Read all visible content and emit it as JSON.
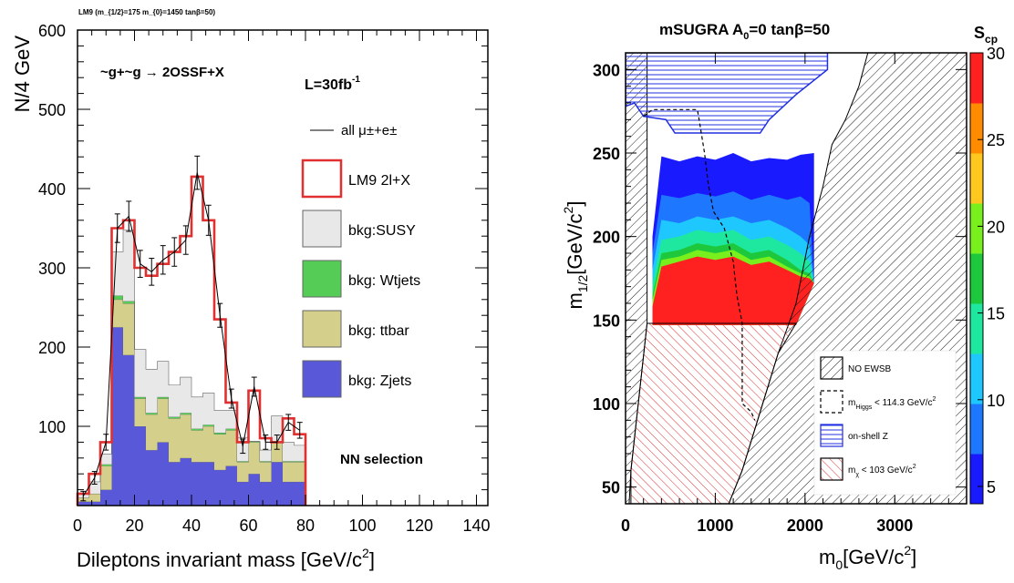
{
  "chart_data": [
    {
      "type": "bar",
      "subtype": "stacked-histogram",
      "title": "LM9 (m_{1/2}=175 m_{0}=1450 tanβ=50)",
      "process_label": "~g+~g → 2OSSF+X",
      "lumi_label": "L=30fb",
      "lumi_sup": "-1",
      "selection_label": "NN  selection",
      "xlabel": "Dileptons invariant mass [GeV/c",
      "xlabel_tail": "]",
      "xlabel_sup": "2",
      "ylabel": "N/4 GeV",
      "xlim": [
        0,
        144
      ],
      "ylim": [
        0,
        600
      ],
      "xticks": [
        "0",
        "20",
        "40",
        "60",
        "80",
        "100",
        "120",
        "140"
      ],
      "yticks": [
        "100",
        "200",
        "300",
        "400",
        "500",
        "600"
      ],
      "grid": false,
      "legend_position": "right",
      "bin_width": 4,
      "bin_edges": [
        0,
        4,
        8,
        12,
        16,
        20,
        24,
        28,
        32,
        36,
        40,
        44,
        48,
        52,
        56,
        60,
        64,
        68,
        72,
        76,
        80
      ],
      "series": [
        {
          "name": "bkg: Zjets",
          "color": "#5858d8",
          "values": [
            5,
            5,
            20,
            225,
            190,
            100,
            70,
            80,
            55,
            60,
            55,
            55,
            45,
            50,
            30,
            40,
            30,
            55,
            30,
            30
          ]
        },
        {
          "name": "bkg: ttbar",
          "color": "#d4d08c",
          "values": [
            5,
            10,
            30,
            35,
            65,
            35,
            45,
            55,
            55,
            55,
            40,
            45,
            45,
            45,
            25,
            40,
            25,
            25,
            25,
            25
          ]
        },
        {
          "name": "bkg: Wtjets",
          "color": "#55cc55",
          "values": [
            0,
            0,
            2,
            5,
            3,
            2,
            2,
            2,
            2,
            2,
            2,
            2,
            2,
            2,
            1,
            1,
            1,
            1,
            1,
            1
          ]
        },
        {
          "name": "bkg:SUSY",
          "color": "#e8e8e8",
          "values": [
            5,
            15,
            13,
            55,
            90,
            60,
            55,
            45,
            40,
            45,
            40,
            40,
            28,
            23,
            30,
            0,
            14,
            32,
            24,
            20
          ]
        }
      ],
      "signal": {
        "name": "LM9 2l+X",
        "color": "#e03030",
        "values": [
          15,
          40,
          80,
          350,
          360,
          300,
          290,
          305,
          320,
          340,
          415,
          360,
          235,
          130,
          80,
          145,
          85,
          80,
          110,
          90
        ]
      },
      "data_points": {
        "name": "all μ±+e±",
        "values": [
          12,
          35,
          80,
          350,
          365,
          305,
          295,
          310,
          320,
          335,
          420,
          360,
          240,
          135,
          75,
          150,
          80,
          80,
          105,
          95
        ],
        "errors": [
          6,
          8,
          10,
          18,
          19,
          17,
          17,
          18,
          18,
          18,
          21,
          19,
          15,
          12,
          9,
          12,
          9,
          9,
          10,
          10
        ]
      },
      "legend": [
        "all μ±+e±",
        "LM9 2l+X",
        "bkg:SUSY",
        "bkg: Wtjets",
        "bkg: ttbar",
        "bkg: Zjets"
      ]
    },
    {
      "type": "heatmap",
      "title": "mSUGRA  A",
      "title_parts": [
        "mSUGRA  A",
        "0",
        "=0  tanβ=50"
      ],
      "xlabel": "m",
      "xlabel_sub": "0",
      "xlabel_unit": "[GeV/c",
      "xlabel_sup": "2",
      "xlabel_tail": "]",
      "ylabel": "m",
      "ylabel_sub": "1/2",
      "ylabel_unit": "[GeV/c",
      "ylabel_sup": "2",
      "ylabel_tail": "]",
      "xlim": [
        0,
        3800
      ],
      "ylim": [
        40,
        310
      ],
      "xticks": [
        "0",
        "1000",
        "2000",
        "3000"
      ],
      "yticks": [
        "50",
        "100",
        "150",
        "200",
        "250",
        "300"
      ],
      "z_label": "S",
      "z_label_sub": "cp",
      "zlim": [
        4,
        30
      ],
      "zticks": [
        "5",
        "10",
        "15",
        "20",
        "25",
        "30"
      ],
      "colorbar": [
        "#1a1aff",
        "#1e78ff",
        "#1ec8ff",
        "#1ee8a0",
        "#1ec83c",
        "#78f01e",
        "#ffc81e",
        "#ff8c00",
        "#ff2020"
      ],
      "contour_bands": [
        {
          "z": 5,
          "color": "#1a1aff",
          "upper": [
            [
              300,
              200
            ],
            [
              400,
              248
            ],
            [
              600,
              245
            ],
            [
              800,
              248
            ],
            [
              1000,
              246
            ],
            [
              1200,
              250
            ],
            [
              1400,
              245
            ],
            [
              1600,
              247
            ],
            [
              1800,
              246
            ],
            [
              1950,
              249
            ],
            [
              2100,
              250
            ]
          ]
        },
        {
          "z": 10,
          "color": "#1e78ff",
          "upper": [
            [
              300,
              190
            ],
            [
              400,
              225
            ],
            [
              600,
              223
            ],
            [
              800,
              226
            ],
            [
              1000,
              224
            ],
            [
              1200,
              227
            ],
            [
              1400,
              222
            ],
            [
              1600,
              225
            ],
            [
              1800,
              222
            ],
            [
              1950,
              224
            ],
            [
              2050,
              220
            ]
          ]
        },
        {
          "z": 13,
          "color": "#1ec8ff",
          "upper": [
            [
              300,
              180
            ],
            [
              400,
              210
            ],
            [
              600,
              208
            ],
            [
              800,
              212
            ],
            [
              1000,
              210
            ],
            [
              1200,
              212
            ],
            [
              1400,
              208
            ],
            [
              1600,
              210
            ],
            [
              1800,
              205
            ],
            [
              1950,
              200
            ],
            [
              2050,
              195
            ]
          ]
        },
        {
          "z": 16,
          "color": "#1ee8a0",
          "upper": [
            [
              300,
              172
            ],
            [
              400,
              198
            ],
            [
              600,
              200
            ],
            [
              800,
              204
            ],
            [
              1000,
              202
            ],
            [
              1200,
              204
            ],
            [
              1400,
              198
            ],
            [
              1600,
              200
            ],
            [
              1800,
              195
            ],
            [
              1950,
              190
            ],
            [
              2050,
              185
            ]
          ]
        },
        {
          "z": 18,
          "color": "#1ec83c",
          "upper": [
            [
              300,
              165
            ],
            [
              400,
              190
            ],
            [
              600,
              192
            ],
            [
              800,
              196
            ],
            [
              1000,
              194
            ],
            [
              1200,
              196
            ],
            [
              1400,
              190
            ],
            [
              1600,
              192
            ],
            [
              1800,
              186
            ],
            [
              1950,
              180
            ],
            [
              2050,
              178
            ]
          ]
        },
        {
          "z": 19,
          "color": "#78f01e",
          "upper": [
            [
              300,
              162
            ],
            [
              400,
              186
            ],
            [
              600,
              188
            ],
            [
              800,
              192
            ],
            [
              1000,
              190
            ],
            [
              1200,
              192
            ],
            [
              1400,
              186
            ],
            [
              1600,
              188
            ],
            [
              1800,
              182
            ],
            [
              1950,
              178
            ],
            [
              2050,
              176
            ]
          ]
        },
        {
          "z": 28,
          "color": "#ff2020",
          "upper": [
            [
              300,
              158
            ],
            [
              400,
              182
            ],
            [
              600,
              185
            ],
            [
              800,
              188
            ],
            [
              1000,
              186
            ],
            [
              1200,
              188
            ],
            [
              1400,
              183
            ],
            [
              1600,
              185
            ],
            [
              1800,
              180
            ],
            [
              1950,
              176
            ],
            [
              2050,
              175
            ]
          ]
        }
      ],
      "legend": [
        {
          "label": "NO EWSB"
        },
        {
          "label": "m",
          "sub": "Higgs",
          "rest": " < 114.3 GeV/c",
          "sup": "2"
        },
        {
          "label": "on-shell Z"
        },
        {
          "label": "m",
          "sub": "χ",
          "rest": " < 103 GeV/c",
          "sup": "2"
        }
      ]
    }
  ]
}
